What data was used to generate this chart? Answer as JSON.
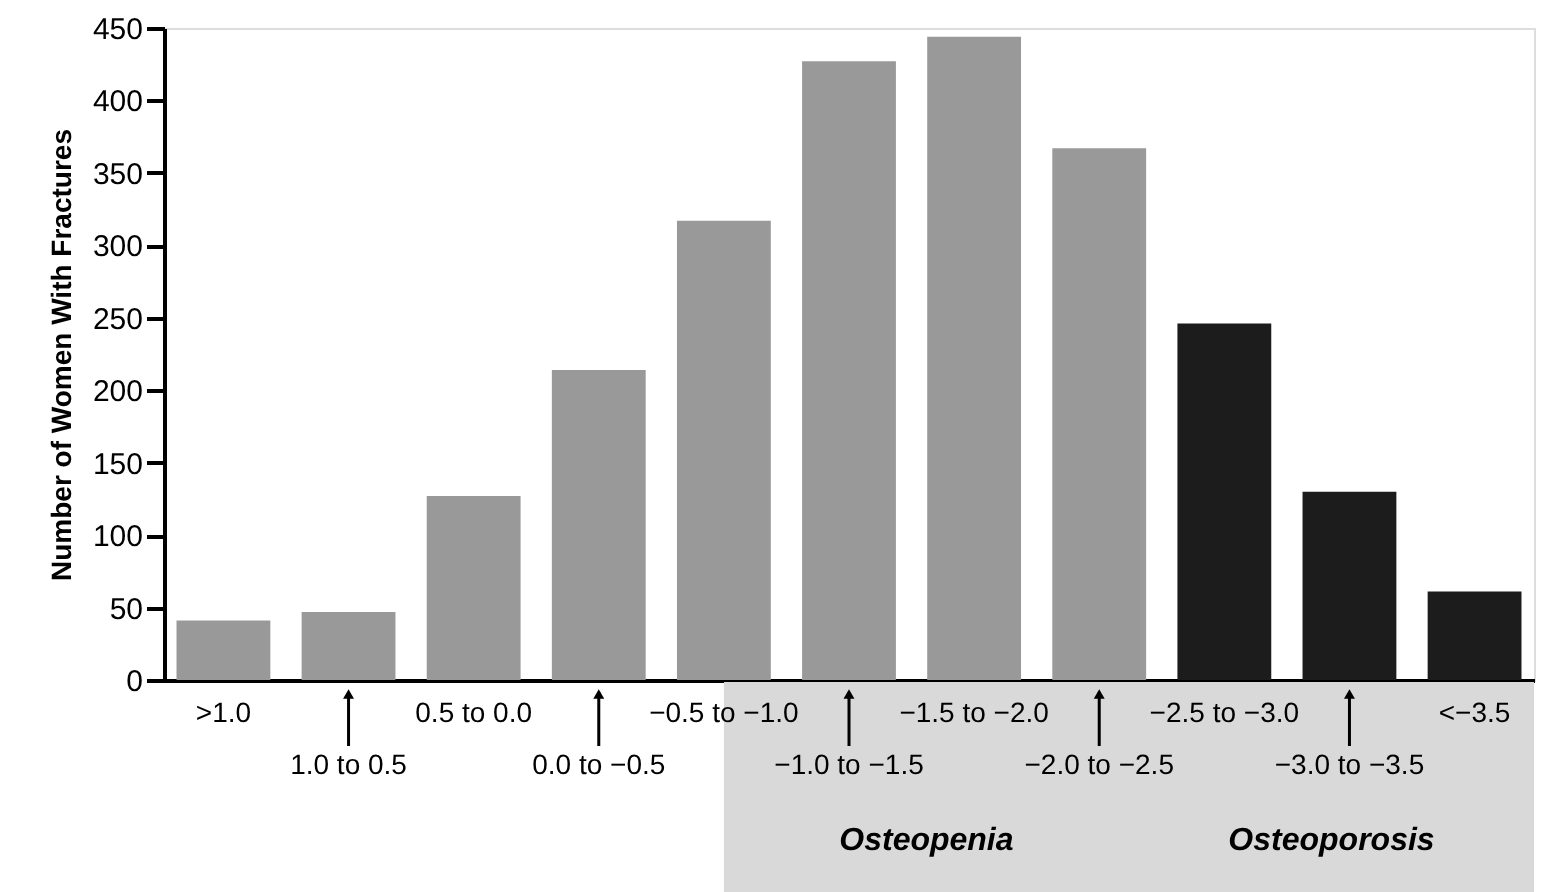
{
  "chart_data": {
    "type": "bar",
    "ylabel": "Number of Women With Fractures",
    "categories": [
      ">1.0",
      "1.0 to 0.5",
      "0.5 to 0.0",
      "0.0 to −0.5",
      "−0.5 to −1.0",
      "−1.0 to −1.5",
      "−1.5 to −2.0",
      "−2.0 to −2.5",
      "−2.5 to −3.0",
      "−3.0 to −3.5",
      "<−3.5"
    ],
    "values": [
      41,
      47,
      127,
      214,
      317,
      427,
      444,
      367,
      246,
      130,
      61
    ],
    "colors": [
      "#999999",
      "#999999",
      "#999999",
      "#999999",
      "#999999",
      "#999999",
      "#999999",
      "#999999",
      "#1c1c1c",
      "#1c1c1c",
      "#1c1c1c"
    ],
    "ylim": [
      0,
      450
    ],
    "yticks": [
      0,
      50,
      100,
      150,
      200,
      250,
      300,
      350,
      400,
      450
    ],
    "grid": false,
    "annotations": [
      "Osteopenia",
      "Osteoporosis"
    ]
  }
}
